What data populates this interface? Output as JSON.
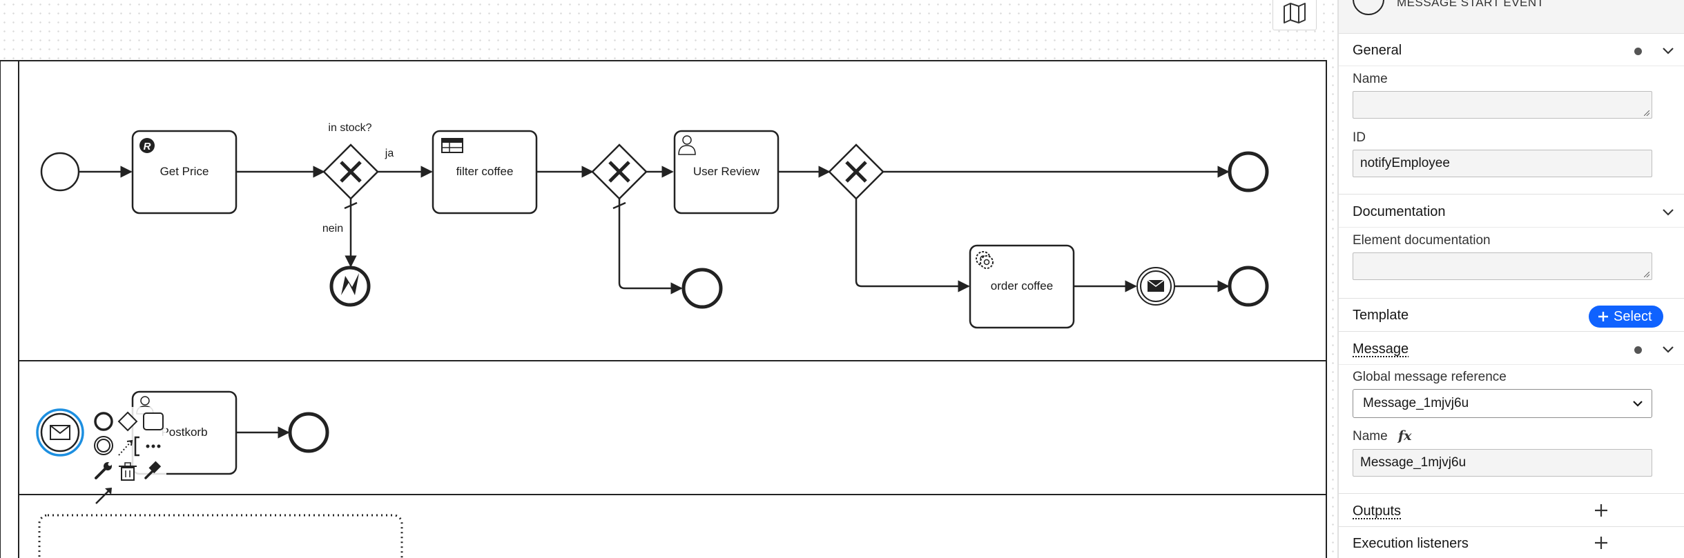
{
  "canvas": {
    "lane1": {
      "get_price": "Get Price",
      "gateway_stock_label": "in stock?",
      "flow_yes": "ja",
      "flow_no": "nein",
      "filter_coffee": "filter coffee",
      "user_review": "User Review",
      "order_coffee": "order coffee",
      "rule_badge": "R"
    },
    "lane2": {
      "postkorb": "Postkorb"
    }
  },
  "panel": {
    "element_type": "MESSAGE START EVENT",
    "general": {
      "title": "General",
      "name_label": "Name",
      "name_value": "",
      "id_label": "ID",
      "id_value": "notifyEmployee"
    },
    "documentation": {
      "title": "Documentation",
      "element_doc_label": "Element documentation",
      "element_doc_value": ""
    },
    "template": {
      "title": "Template",
      "select_label": "Select"
    },
    "message": {
      "title": "Message",
      "global_ref_label": "Global message reference",
      "global_ref_value": "Message_1mjvj6u",
      "name_label": "Name",
      "fx_label": "fx",
      "name_value": "Message_1mjvj6u"
    },
    "outputs": {
      "title": "Outputs"
    },
    "execution_listeners": {
      "title": "Execution listeners"
    }
  },
  "colors": {
    "accent": "#0f62fe",
    "selection": "#1d8fe0",
    "stroke": "#222222"
  }
}
